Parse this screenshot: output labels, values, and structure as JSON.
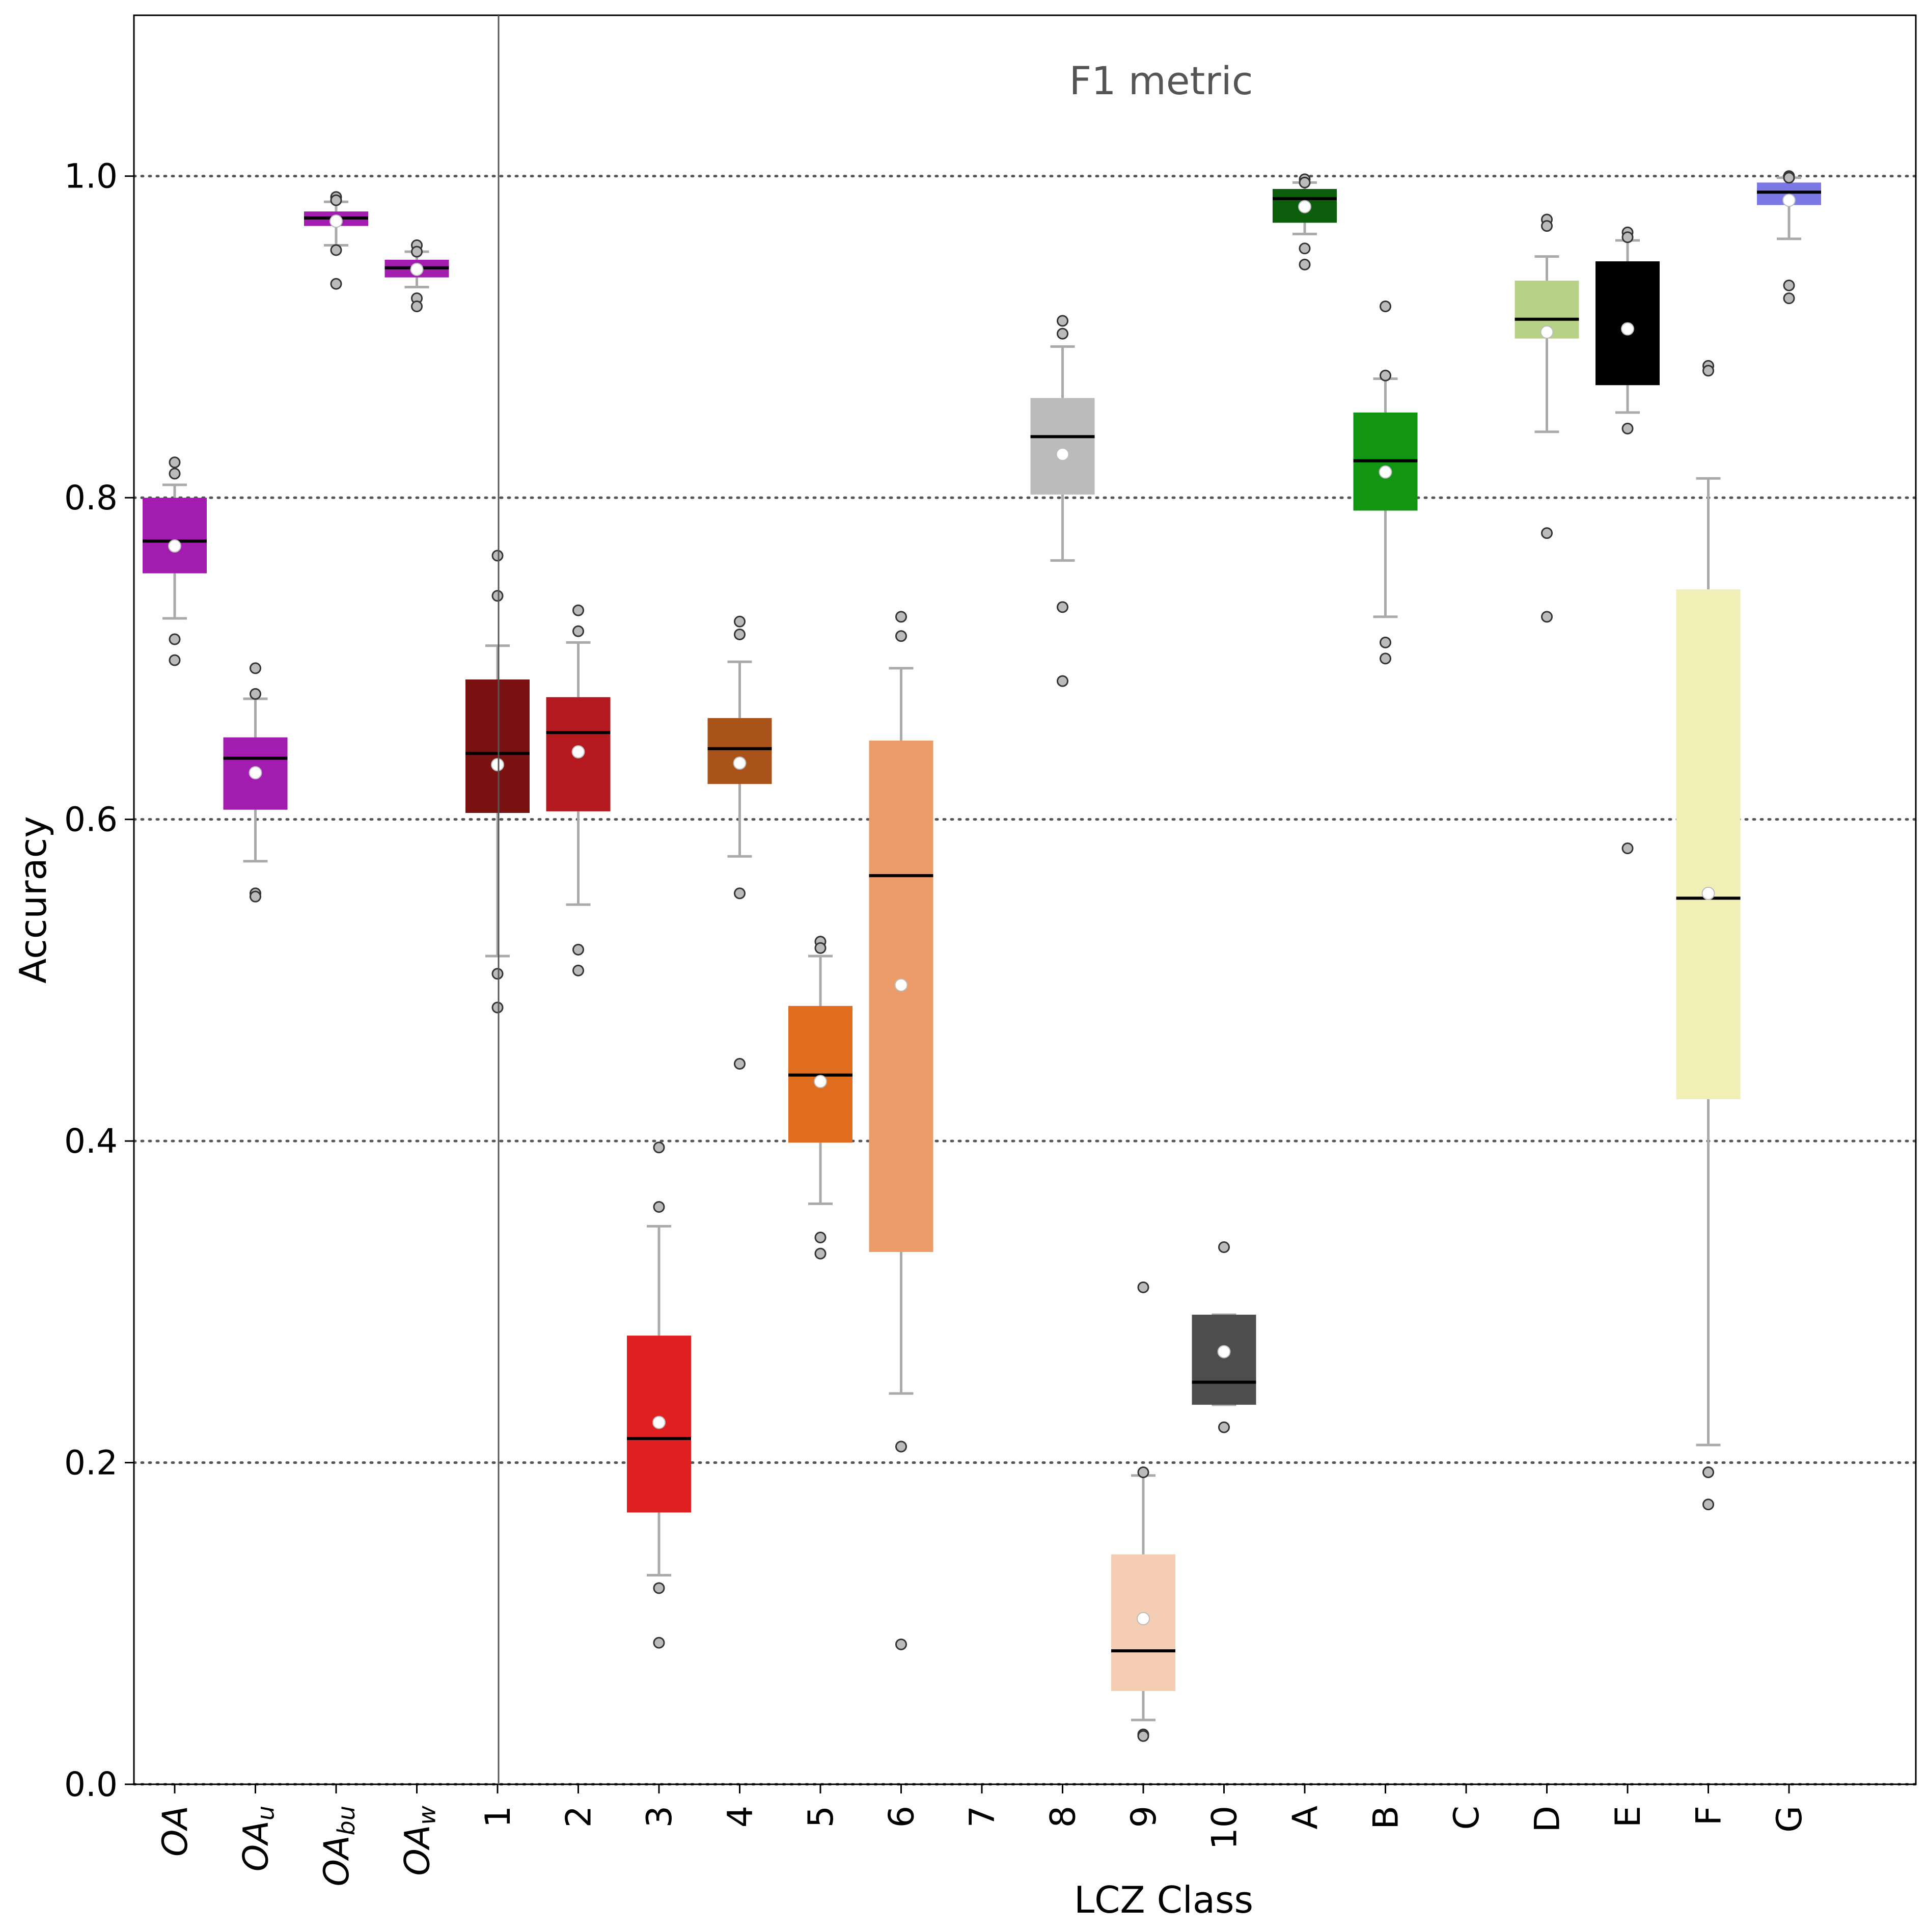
{
  "chart_data": {
    "type": "box",
    "title": "",
    "annotation": "F1 metric",
    "xlabel": "LCZ Class",
    "ylabel": "Accuracy",
    "ylim": [
      0.0,
      1.1
    ],
    "yticks": [
      "0.0",
      "0.2",
      "0.4",
      "0.6",
      "0.8",
      "1.0"
    ],
    "grid": "horizontal dotted",
    "groups": [
      {
        "label_base": "OA",
        "label_sub": "",
        "color": "#A21CAF",
        "q1": 0.753,
        "median": 0.773,
        "q3": 0.8,
        "whisker_low": 0.725,
        "whisker_high": 0.808,
        "mean": 0.77,
        "outliers": [
          0.822,
          0.815,
          0.712,
          0.699
        ]
      },
      {
        "label_base": "OA",
        "label_sub": "u",
        "color": "#A21CAF",
        "q1": 0.606,
        "median": 0.638,
        "q3": 0.651,
        "whisker_low": 0.574,
        "whisker_high": 0.675,
        "mean": 0.629,
        "outliers": [
          0.694,
          0.678,
          0.554,
          0.552
        ]
      },
      {
        "label_base": "OA",
        "label_sub": "bu",
        "color": "#A21CAF",
        "q1": 0.969,
        "median": 0.974,
        "q3": 0.978,
        "whisker_low": 0.957,
        "whisker_high": 0.984,
        "mean": 0.972,
        "outliers": [
          0.987,
          0.985,
          0.954,
          0.933
        ]
      },
      {
        "label_base": "OA",
        "label_sub": "w",
        "color": "#A21CAF",
        "q1": 0.937,
        "median": 0.943,
        "q3": 0.948,
        "whisker_low": 0.931,
        "whisker_high": 0.953,
        "mean": 0.942,
        "outliers": [
          0.957,
          0.953,
          0.924,
          0.919
        ]
      },
      {
        "label": "1",
        "color": "#7B1212",
        "q1": 0.604,
        "median": 0.641,
        "q3": 0.687,
        "whisker_low": 0.515,
        "whisker_high": 0.708,
        "mean": 0.634,
        "outliers": [
          0.764,
          0.739,
          0.504,
          0.483
        ]
      },
      {
        "label": "2",
        "color": "#B3191E",
        "q1": 0.605,
        "median": 0.654,
        "q3": 0.676,
        "whisker_low": 0.547,
        "whisker_high": 0.71,
        "mean": 0.642,
        "outliers": [
          0.73,
          0.717,
          0.519,
          0.506
        ]
      },
      {
        "label": "3",
        "color": "#E02020",
        "q1": 0.169,
        "median": 0.215,
        "q3": 0.279,
        "whisker_low": 0.13,
        "whisker_high": 0.347,
        "mean": 0.225,
        "outliers": [
          0.396,
          0.359,
          0.122,
          0.088
        ]
      },
      {
        "label": "4",
        "color": "#A9521A",
        "q1": 0.622,
        "median": 0.644,
        "q3": 0.663,
        "whisker_low": 0.577,
        "whisker_high": 0.698,
        "mean": 0.635,
        "outliers": [
          0.723,
          0.715,
          0.554,
          0.448
        ]
      },
      {
        "label": "5",
        "color": "#E06C1E",
        "q1": 0.399,
        "median": 0.441,
        "q3": 0.484,
        "whisker_low": 0.361,
        "whisker_high": 0.515,
        "mean": 0.437,
        "outliers": [
          0.524,
          0.52,
          0.34,
          0.33
        ]
      },
      {
        "label": "6",
        "color": "#EB9C69",
        "q1": 0.331,
        "median": 0.565,
        "q3": 0.649,
        "whisker_low": 0.243,
        "whisker_high": 0.694,
        "mean": 0.497,
        "outliers": [
          0.726,
          0.714,
          0.21,
          0.087
        ]
      },
      {
        "label": "7"
      },
      {
        "label": "8",
        "color": "#BBBBBB",
        "q1": 0.802,
        "median": 0.838,
        "q3": 0.862,
        "whisker_low": 0.761,
        "whisker_high": 0.894,
        "mean": 0.827,
        "outliers": [
          0.91,
          0.902,
          0.732,
          0.686
        ]
      },
      {
        "label": "9",
        "color": "#F5CDB3",
        "q1": 0.058,
        "median": 0.083,
        "q3": 0.143,
        "whisker_low": 0.04,
        "whisker_high": 0.192,
        "mean": 0.103,
        "outliers": [
          0.309,
          0.194,
          0.031,
          0.03
        ]
      },
      {
        "label": "10",
        "color": "#4D4D4D",
        "q1": 0.236,
        "median": 0.25,
        "q3": 0.292,
        "whisker_low": 0.236,
        "whisker_high": 0.292,
        "mean": 0.269,
        "outliers": [
          0.334,
          0.222
        ]
      },
      {
        "label": "A",
        "color": "#0C5D0C",
        "q1": 0.971,
        "median": 0.986,
        "q3": 0.992,
        "whisker_low": 0.964,
        "whisker_high": 0.996,
        "mean": 0.981,
        "outliers": [
          0.998,
          0.996,
          0.955,
          0.945
        ]
      },
      {
        "label": "B",
        "color": "#129512",
        "q1": 0.792,
        "median": 0.823,
        "q3": 0.853,
        "whisker_low": 0.726,
        "whisker_high": 0.874,
        "mean": 0.816,
        "outliers": [
          0.919,
          0.876,
          0.71,
          0.7
        ]
      },
      {
        "label": "C"
      },
      {
        "label": "D",
        "color": "#B7D186",
        "q1": 0.899,
        "median": 0.911,
        "q3": 0.935,
        "whisker_low": 0.841,
        "whisker_high": 0.95,
        "mean": 0.903,
        "outliers": [
          0.973,
          0.969,
          0.778,
          0.726
        ]
      },
      {
        "label": "E",
        "color": "#000000",
        "q1": 0.87,
        "median": 0.926,
        "q3": 0.947,
        "whisker_low": 0.853,
        "whisker_high": 0.96,
        "mean": 0.905,
        "outliers": [
          0.965,
          0.962,
          0.843,
          0.582
        ]
      },
      {
        "label": "F",
        "color": "#F1EFB6",
        "q1": 0.426,
        "median": 0.551,
        "q3": 0.743,
        "whisker_low": 0.211,
        "whisker_high": 0.812,
        "mean": 0.554,
        "outliers": [
          0.882,
          0.879,
          0.194,
          0.174
        ]
      },
      {
        "label": "G",
        "color": "#7B78E6",
        "q1": 0.982,
        "median": 0.99,
        "q3": 0.996,
        "whisker_low": 0.961,
        "whisker_high": 0.999,
        "mean": 0.985,
        "outliers": [
          1.0,
          0.999,
          0.932,
          0.924
        ]
      }
    ]
  }
}
